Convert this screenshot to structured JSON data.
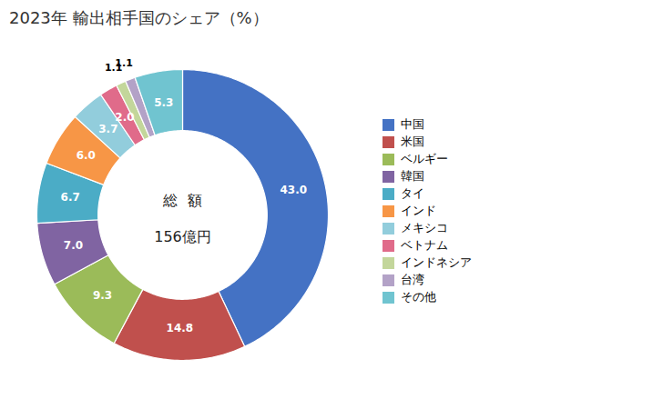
{
  "chart_data": {
    "type": "pie",
    "title": "2023年 輸出相手国のシェア（%）",
    "categories": [
      "中国",
      "米国",
      "ベルギー",
      "韓国",
      "タイ",
      "インド",
      "メキシコ",
      "ベトナム",
      "インドネシア",
      "台湾",
      "その他"
    ],
    "values": [
      43.0,
      14.8,
      9.3,
      7.0,
      6.7,
      6.0,
      3.7,
      2.0,
      1.1,
      1.1,
      5.3
    ],
    "value_labels": [
      "43.0",
      "14.8",
      "9.3",
      "7.0",
      "6.7",
      "6.0",
      "3.7",
      "2.0",
      "1.1",
      "1.1",
      "5.3"
    ],
    "colors": [
      "#4472C4",
      "#C0504D",
      "#9BBB59",
      "#8064A2",
      "#4BACC6",
      "#F79646",
      "#92CDDC",
      "#E06B8A",
      "#C3D69B",
      "#B3A2C7",
      "#70C4D0"
    ],
    "data_labels": true,
    "legend": "right",
    "annotations": [
      "総  額",
      "156億円"
    ]
  }
}
